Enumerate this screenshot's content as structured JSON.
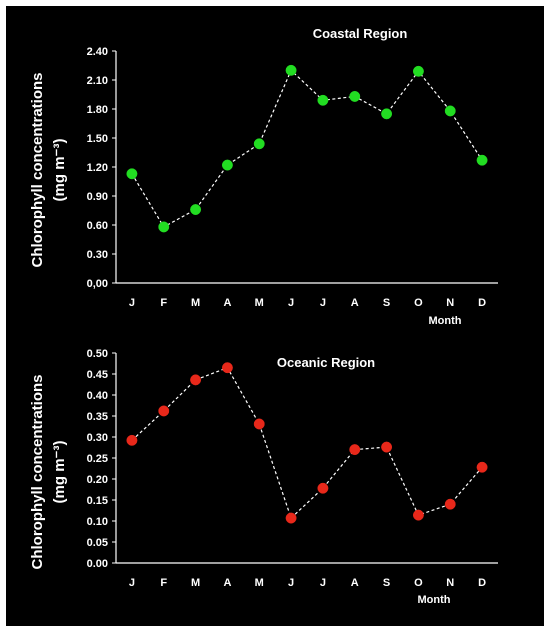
{
  "chart_data": [
    {
      "type": "line",
      "title": "Coastal Region",
      "xlabel": "Month",
      "ylabel": "Chlorophyll concentrations",
      "ylabel_unit": "(mg m⁻³)",
      "categories": [
        "J",
        "F",
        "M",
        "A",
        "M",
        "J",
        "J",
        "A",
        "S",
        "O",
        "N",
        "D"
      ],
      "values": [
        1.13,
        0.58,
        0.76,
        1.22,
        1.44,
        2.2,
        1.89,
        1.93,
        1.75,
        2.19,
        1.78,
        1.27
      ],
      "ylim": [
        0,
        2.4
      ],
      "yticks": [
        "0,00",
        "0.30",
        "0.60",
        "0.90",
        "1.20",
        "1.50",
        "1.80",
        "2.10",
        "2.40"
      ],
      "marker_color": "#22dd22",
      "line_color": "#ffffff",
      "line_style": "dashed",
      "grid": false
    },
    {
      "type": "line",
      "title": "Oceanic Region",
      "xlabel": "Month",
      "ylabel": "Chlorophyll concentrations",
      "ylabel_unit": "(mg m⁻³)",
      "categories": [
        "J",
        "F",
        "M",
        "A",
        "M",
        "J",
        "J",
        "A",
        "S",
        "O",
        "N",
        "D"
      ],
      "values": [
        0.292,
        0.362,
        0.436,
        0.465,
        0.331,
        0.107,
        0.178,
        0.27,
        0.276,
        0.114,
        0.14,
        0.228
      ],
      "ylim": [
        0,
        0.5
      ],
      "yticks": [
        "0.00",
        "0.05",
        "0.10",
        "0.15",
        "0.20",
        "0.25",
        "0.30",
        "0.35",
        "0.40",
        "0.45",
        "0.50"
      ],
      "marker_color": "#e8281a",
      "line_color": "#ffffff",
      "line_style": "dashed",
      "grid": false
    }
  ]
}
